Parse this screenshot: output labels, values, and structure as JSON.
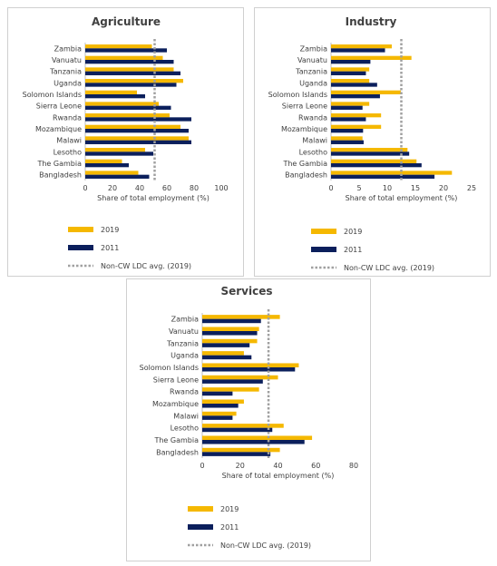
{
  "colors": {
    "y2019": "#f5b800",
    "y2011": "#0b1f5c",
    "avg": "#a0a0a0"
  },
  "legend": {
    "s2019": "2019",
    "s2011": "2011",
    "avg": "Non-CW LDC avg. (2019)"
  },
  "chart_data": [
    {
      "type": "bar",
      "title": "Agriculture",
      "xlabel": "Share of total employment (%)",
      "xlim": [
        0,
        100
      ],
      "xticks": [
        0,
        20,
        40,
        60,
        80,
        100
      ],
      "categories": [
        "Zambia",
        "Vanuatu",
        "Tanzania",
        "Uganda",
        "Solomon Islands",
        "Sierra Leone",
        "Rwanda",
        "Mozambique",
        "Malawi",
        "Lesotho",
        "The Gambia",
        "Bangladesh"
      ],
      "series": [
        {
          "name": "2019",
          "values": [
            49,
            57,
            65,
            72,
            38,
            54,
            62,
            70,
            76,
            44,
            27,
            39
          ]
        },
        {
          "name": "2011",
          "values": [
            60,
            65,
            70,
            67,
            44,
            63,
            78,
            76,
            78,
            50,
            32,
            47
          ]
        }
      ],
      "reference_line": {
        "name": "Non-CW LDC avg. (2019)",
        "value": 51
      }
    },
    {
      "type": "bar",
      "title": "Industry",
      "xlabel": "Share of total employment (%)",
      "xlim": [
        0,
        25
      ],
      "xticks": [
        0,
        5,
        10,
        15,
        20,
        25
      ],
      "categories": [
        "Zambia",
        "Vanuatu",
        "Tanzania",
        "Uganda",
        "Solomon Islands",
        "Sierra Leone",
        "Rwanda",
        "Mozambique",
        "Malawi",
        "Lesotho",
        "The Gambia",
        "Bangladesh"
      ],
      "series": [
        {
          "name": "2019",
          "values": [
            10.8,
            14.3,
            6.8,
            6.8,
            12.4,
            6.8,
            8.9,
            8.9,
            5.6,
            13.6,
            15.2,
            21.5
          ]
        },
        {
          "name": "2011",
          "values": [
            9.6,
            7.0,
            6.2,
            8.2,
            8.7,
            5.6,
            6.2,
            5.7,
            5.8,
            13.9,
            16.1,
            18.4
          ]
        }
      ],
      "reference_line": {
        "name": "Non-CW LDC avg. (2019)",
        "value": 12.5
      }
    },
    {
      "type": "bar",
      "title": "Services",
      "xlabel": "Share of total employment (%)",
      "xlim": [
        0,
        80
      ],
      "xticks": [
        0,
        20,
        40,
        60,
        80
      ],
      "categories": [
        "Zambia",
        "Vanuatu",
        "Tanzania",
        "Uganda",
        "Solomon Islands",
        "Sierra Leone",
        "Rwanda",
        "Mozambique",
        "Malawi",
        "Lesotho",
        "The Gambia",
        "Bangladesh"
      ],
      "series": [
        {
          "name": "2019",
          "values": [
            41,
            30,
            29,
            22,
            51,
            40,
            30,
            22,
            18,
            43,
            58,
            41
          ]
        },
        {
          "name": "2011",
          "values": [
            31,
            29,
            25,
            26,
            49,
            32,
            16,
            19,
            16,
            37,
            54,
            36
          ]
        }
      ],
      "reference_line": {
        "name": "Non-CW LDC avg. (2019)",
        "value": 35
      }
    }
  ]
}
